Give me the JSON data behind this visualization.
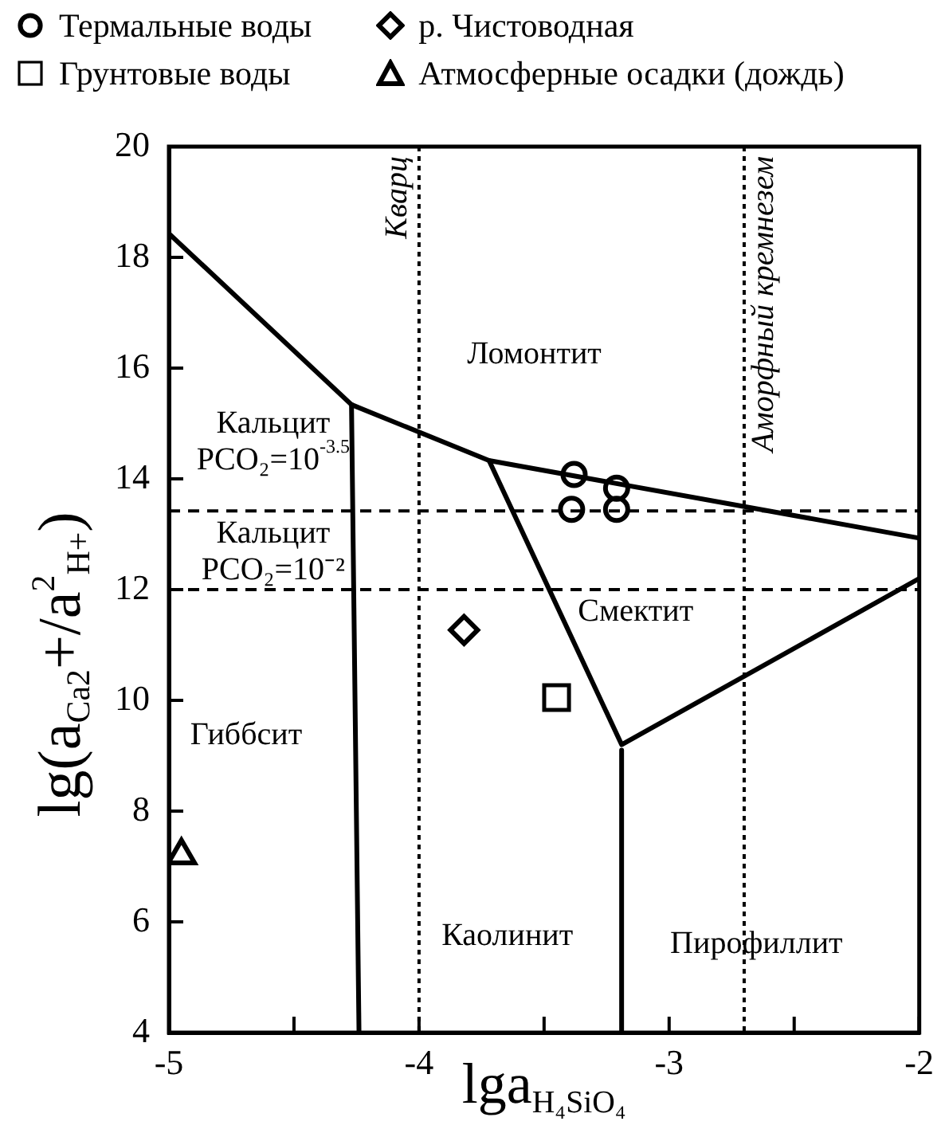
{
  "chart_data": {
    "type": "scatter",
    "xlabel": "lga$_{H₄SiO₄}$",
    "ylabel": "lg(a$_{Ca2}$+/a$^{2}$$_{H+}$)",
    "xlim": [
      -5,
      -2
    ],
    "xticks": [
      -5,
      {
        "value": -4.5,
        "label": null
      },
      -4,
      {
        "value": -3.5,
        "label": null
      },
      -3,
      {
        "value": -2.5,
        "label": null
      },
      -2
    ],
    "ylim": [
      4,
      20
    ],
    "yticks": [
      4,
      6,
      8,
      10,
      12,
      14,
      16,
      18,
      20
    ],
    "grid": false,
    "legend": "top left",
    "series": [
      {
        "name": "Термальные воды",
        "marker": "circle",
        "color": "#000000",
        "x": [
          -3.38,
          -3.21,
          -3.39,
          -3.21
        ],
        "values": [
          14.08,
          13.83,
          13.45,
          13.45
        ]
      },
      {
        "name": "р. Чистоводная",
        "marker": "diamond",
        "color": "#000000",
        "x": [
          -3.82
        ],
        "values": [
          11.27
        ]
      },
      {
        "name": "Грунтовые воды",
        "marker": "square",
        "color": "#000000",
        "x": [
          -3.45
        ],
        "values": [
          10.05
        ]
      },
      {
        "name": "Атмосферные осадки (дождь)",
        "marker": "triangle",
        "color": "#000000",
        "x": [
          -4.95
        ],
        "values": [
          7.2
        ]
      },
      {
        "type": "line",
        "marker": "none",
        "line_style": "solid",
        "color": "#000000",
        "x": [
          -5,
          -4.27,
          -3.72,
          -2
        ],
        "values": [
          18.43,
          15.34,
          14.33,
          12.93
        ]
      },
      {
        "type": "line",
        "marker": "none",
        "line_style": "solid",
        "color": "#000000",
        "x": [
          -4.27,
          -4.24
        ],
        "values": [
          15.34,
          4
        ]
      },
      {
        "type": "line",
        "marker": "none",
        "line_style": "solid",
        "color": "#000000",
        "x": [
          -3.72,
          -3.19,
          -2
        ],
        "values": [
          14.33,
          9.2,
          12.2
        ]
      },
      {
        "type": "line",
        "marker": "none",
        "line_style": "solid",
        "color": "#000000",
        "x": [
          -3.19,
          -3.19
        ],
        "values": [
          9.1,
          4
        ]
      }
    ],
    "ref_lines": [
      {
        "axis": "y",
        "value": 13.42,
        "line_style": "dashed",
        "color": "#000000"
      },
      {
        "axis": "y",
        "value": 12.0,
        "line_style": "dashed",
        "color": "#000000"
      },
      {
        "axis": "x",
        "value": -4.0,
        "label": "Кварц",
        "line_style": "dotted",
        "color": "#000000"
      },
      {
        "axis": "x",
        "value": -2.7,
        "label": "Аморфный кремнезем",
        "line_style": "dotted",
        "color": "#000000"
      }
    ],
    "annotations": [
      "Ломонтит",
      "Кальцит\nPCO₂=10$^{-3.5}$",
      "Кальцит\nPCO₂=10⁻²",
      "Смектит",
      "Гиббсит",
      "Каолинит",
      "Пирофиллит"
    ]
  }
}
